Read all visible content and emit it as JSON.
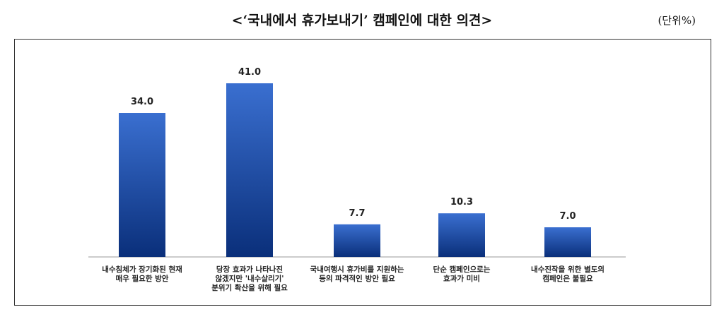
{
  "title": "<‘국내에서 휴가보내기’ 캠페인에 대한 의견>",
  "unit": "(단위%)",
  "chart_data": {
    "type": "bar",
    "title": "<‘국내에서 휴가보내기’ 캠페인에 대한 의견>",
    "unit": "(단위%)",
    "categories": [
      [
        "내수침체가 장기화된 현재",
        "매우 필요한 방안"
      ],
      [
        "당장 효과가 나타나진",
        "않겠지만 '내수살리기'",
        "분위기 확산을 위해 필요"
      ],
      [
        "국내여행시 휴가비를 지원하는",
        "등의 파격적인 방안 필요"
      ],
      [
        "단순 캠페인으로는",
        "효과가 미비"
      ],
      [
        "내수진작을 위한 별도의",
        "캠페인은 불필요"
      ]
    ],
    "values": [
      34.0,
      41.0,
      7.7,
      10.3,
      7.0
    ],
    "value_labels": [
      "34.0",
      "41.0",
      "7.7",
      "10.3",
      "7.0"
    ],
    "ylim": [
      0,
      50
    ],
    "grid": false,
    "bar_color_top": "#3a6fd0",
    "bar_color_bottom": "#0a2f7a"
  }
}
